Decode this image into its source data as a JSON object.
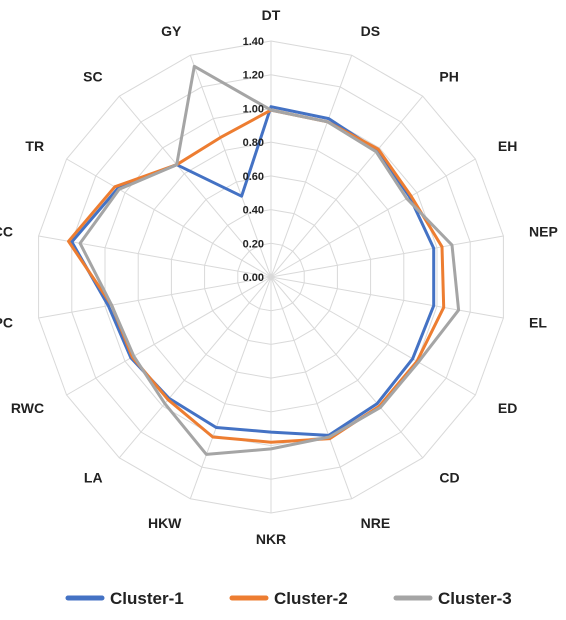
{
  "chart_data": {
    "type": "radar",
    "axes": [
      "DT",
      "DS",
      "PH",
      "EH",
      "NEP",
      "EL",
      "ED",
      "CD",
      "NRE",
      "NKR",
      "HKW",
      "LA",
      "RWC",
      "PC",
      "CC",
      "TR",
      "SC",
      "GY"
    ],
    "rlim": [
      0,
      1.4
    ],
    "ticks": [
      "0.00",
      "0.20",
      "0.40",
      "0.60",
      "0.80",
      "1.00",
      "1.20",
      "1.40"
    ],
    "tick_values": [
      0,
      0.2,
      0.4,
      0.6,
      0.8,
      1.0,
      1.2,
      1.4
    ],
    "grid": true,
    "legend_position": "bottom",
    "series": [
      {
        "name": "Cluster-1",
        "color": "#4472C4",
        "values": [
          1.01,
          1.0,
          0.98,
          0.95,
          0.98,
          0.98,
          0.97,
          0.98,
          1.0,
          0.92,
          0.95,
          0.94,
          0.96,
          0.98,
          1.2,
          1.05,
          0.87,
          0.51
        ]
      },
      {
        "name": "Cluster-2",
        "color": "#ED7D31",
        "values": [
          0.99,
          0.98,
          0.99,
          0.96,
          1.03,
          1.04,
          1.0,
          1.0,
          1.02,
          0.98,
          1.01,
          0.95,
          0.95,
          0.96,
          1.22,
          1.07,
          0.87,
          0.88
        ]
      },
      {
        "name": "Cluster-3",
        "color": "#A5A5A5",
        "values": [
          0.99,
          0.98,
          0.97,
          0.93,
          1.09,
          1.13,
          1.01,
          1.01,
          1.01,
          1.02,
          1.12,
          0.98,
          0.94,
          0.96,
          1.15,
          1.04,
          0.87,
          1.33
        ]
      }
    ]
  }
}
